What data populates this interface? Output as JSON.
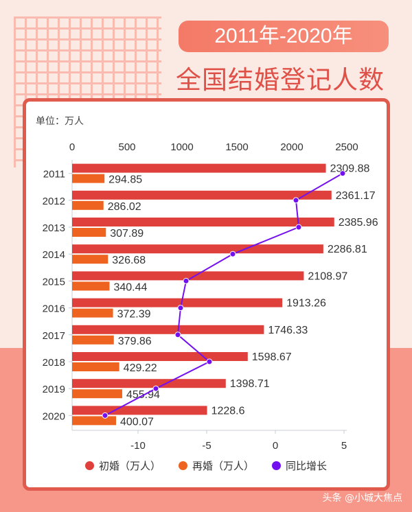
{
  "header": {
    "year_range": "2011年-2020年",
    "title": "全国结婚登记人数"
  },
  "unit_label": "单位：万人",
  "watermark": "头条 @小城大焦点",
  "colors": {
    "first_marriage": "#e0403c",
    "remarriage": "#ee6320",
    "growth": "#7210f0",
    "card_border": "#e05a4e",
    "background_top": "#fbe9e4",
    "background_bottom": "#f6978a"
  },
  "chart_data": {
    "type": "bar",
    "orientation": "horizontal",
    "categories": [
      "2011",
      "2012",
      "2013",
      "2014",
      "2015",
      "2016",
      "2017",
      "2018",
      "2019",
      "2020"
    ],
    "series": [
      {
        "name": "初婚（万人）",
        "type": "bar",
        "axis": "top",
        "values": [
          2309.88,
          2361.17,
          2385.96,
          2286.81,
          2108.97,
          1913.26,
          1746.33,
          1598.67,
          1398.71,
          1228.6
        ],
        "labels": [
          "2309.88",
          "2361.17",
          "2385.96",
          "2286.81",
          "2108.97",
          "1913.26",
          "1746.33",
          "1598.67",
          "1398.71",
          "1228.6"
        ]
      },
      {
        "name": "再婚（万人）",
        "type": "bar",
        "axis": "top",
        "values": [
          294.85,
          286.02,
          307.89,
          326.68,
          340.44,
          372.39,
          379.86,
          429.22,
          455.94,
          400.07
        ],
        "labels": [
          "294.85",
          "286.02",
          "307.89",
          "326.68",
          "340.44",
          "372.39",
          "379.86",
          "429.22",
          "455.94",
          "400.07"
        ]
      },
      {
        "name": "同比增长",
        "type": "line",
        "axis": "bottom",
        "values": [
          4.9,
          1.5,
          1.7,
          -3.1,
          -6.5,
          -6.9,
          -7.1,
          -4.8,
          -8.7,
          -12.4
        ]
      }
    ],
    "top_axis": {
      "range": [
        0,
        2500
      ],
      "ticks": [
        "0",
        "500",
        "1000",
        "1500",
        "2000",
        "2500"
      ]
    },
    "bottom_axis": {
      "range": [
        -15,
        5
      ],
      "ticks": [
        "-10",
        "-5",
        "0",
        "5"
      ]
    },
    "legend_position": "bottom",
    "grid": false
  }
}
